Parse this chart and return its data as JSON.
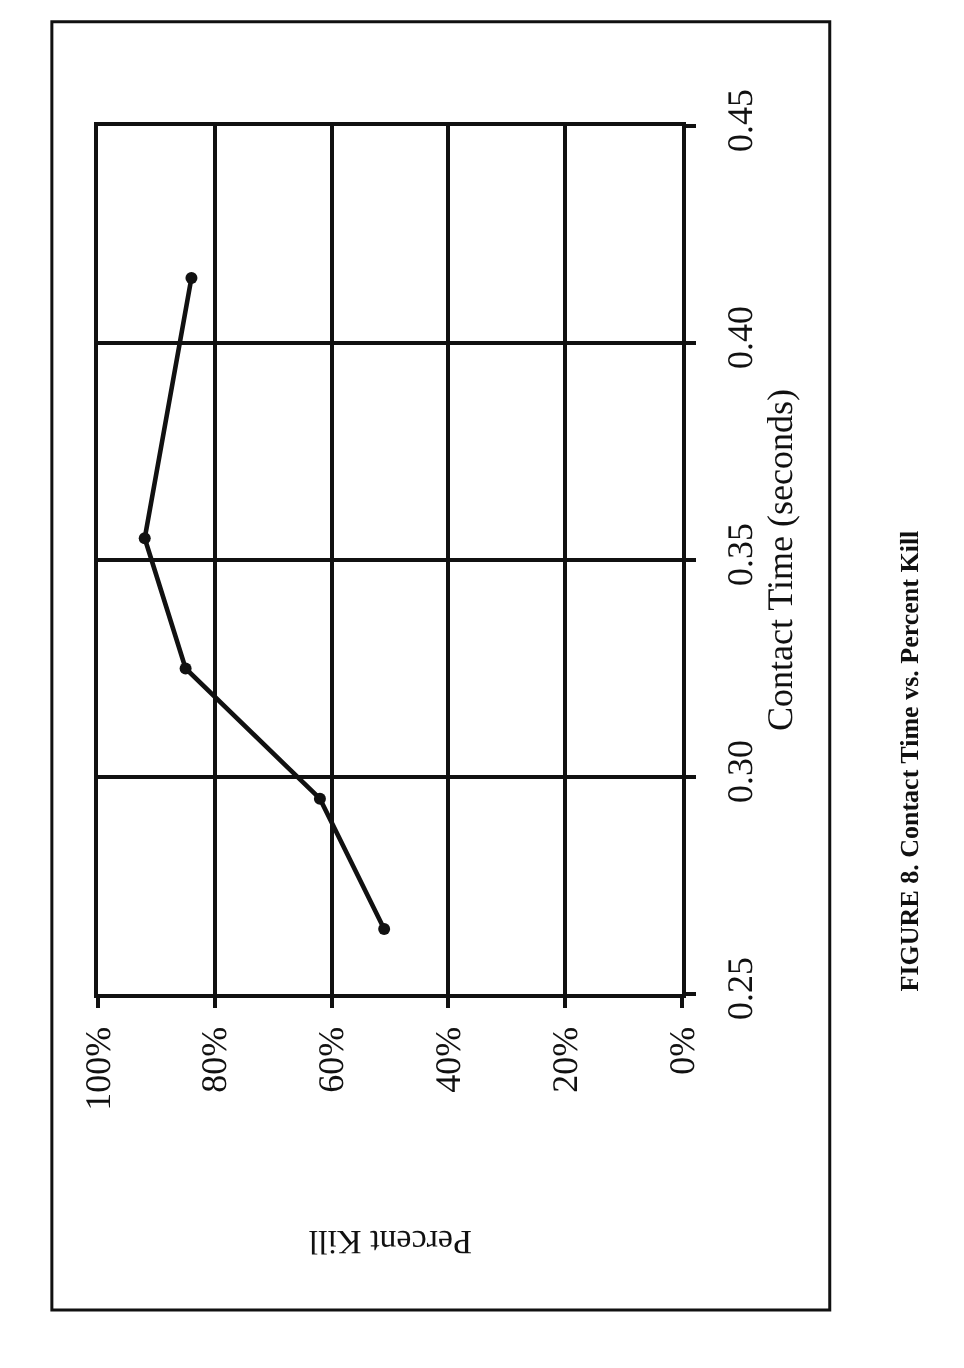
{
  "chart_data": {
    "type": "line",
    "title": "FIGURE 8. Contact Time vs. Percent Kill",
    "xlabel": "Percent Kill",
    "ylabel": "Contact Time (seconds)",
    "series": [
      {
        "color": "#111111",
        "x": [
          51,
          62,
          85,
          92,
          84
        ],
        "values": [
          0.265,
          0.295,
          0.325,
          0.355,
          0.415
        ]
      }
    ],
    "xlim": [
      100,
      0
    ],
    "xticks": [
      {
        "value": 100,
        "label": "100%"
      },
      {
        "value": 80,
        "label": "80%"
      },
      {
        "value": 60,
        "label": "60%"
      },
      {
        "value": 40,
        "label": "40%"
      },
      {
        "value": 20,
        "label": "20%"
      },
      {
        "value": 0,
        "label": "0%"
      }
    ],
    "ylim": [
      0.25,
      0.45
    ],
    "yticks": [
      {
        "value": 0.25,
        "label": "0.25"
      },
      {
        "value": 0.3,
        "label": "0.30"
      },
      {
        "value": 0.35,
        "label": "0.35"
      },
      {
        "value": 0.4,
        "label": "0.40"
      },
      {
        "value": 0.45,
        "label": "0.45"
      }
    ],
    "grid": true,
    "marker": "circle",
    "line_style": "solid"
  }
}
